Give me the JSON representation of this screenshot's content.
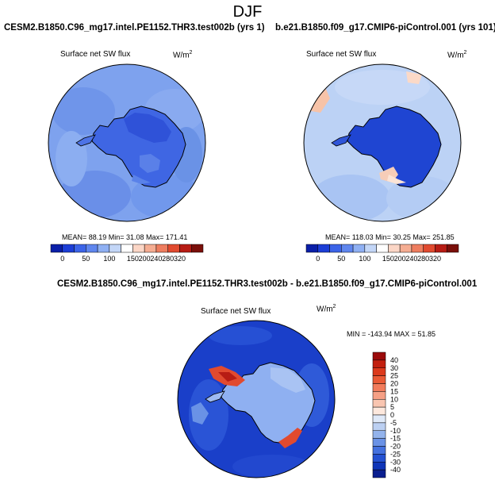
{
  "figure": {
    "title": "DJF"
  },
  "panels": [
    {
      "case": "CESM2.B1850.C96_mg17.intel.PE1152.THR3.test002b (yrs 1)",
      "variable": "Surface net SW flux",
      "units": "W/m",
      "units_exp": "2",
      "stats": "MEAN=  88.19  Min=  31.08  Max= 171.41",
      "colorbar": {
        "labels": [
          "0",
          "50",
          "100",
          "150",
          "200",
          "240",
          "280",
          "320"
        ],
        "colors": [
          "#0a1fa8",
          "#1c3ed6",
          "#3c64e8",
          "#5f86ee",
          "#8fb0f3",
          "#c3d6f7",
          "#ffffff",
          "#fbd6c6",
          "#f5ad92",
          "#ee7d5f",
          "#e14a2f",
          "#b71c14",
          "#7a0f0a"
        ]
      }
    },
    {
      "case": "b.e21.B1850.f09_g17.CMIP6-piControl.001 (yrs 101)",
      "variable": "Surface net SW flux",
      "units": "W/m",
      "units_exp": "2",
      "stats": "MEAN= 118.03  Min=  30.25  Max= 251.85",
      "colorbar": {
        "labels": [
          "0",
          "50",
          "100",
          "150",
          "200",
          "240",
          "280",
          "320"
        ],
        "colors": [
          "#0a1fa8",
          "#1c3ed6",
          "#3c64e8",
          "#5f86ee",
          "#8fb0f3",
          "#c3d6f7",
          "#ffffff",
          "#fbd6c6",
          "#f5ad92",
          "#ee7d5f",
          "#e14a2f",
          "#b71c14",
          "#7a0f0a"
        ]
      }
    }
  ],
  "diff": {
    "title": "CESM2.B1850.C96_mg17.intel.PE1152.THR3.test002b - b.e21.B1850.f09_g17.CMIP6-piControl.001",
    "variable": "Surface net SW flux",
    "units": "W/m",
    "units_exp": "2",
    "stats": "MIN = -143.94 MAX =  51.85",
    "colorbar": {
      "labels": [
        "40",
        "30",
        "25",
        "20",
        "15",
        "10",
        "5",
        "0",
        "-5",
        "-10",
        "-15",
        "-20",
        "-25",
        "-30",
        "-40"
      ],
      "colors": [
        "#9b0b0b",
        "#c3200f",
        "#dc3a1c",
        "#ea5a36",
        "#f27c5c",
        "#f6a085",
        "#f9c5b0",
        "#fde8dd",
        "#dfe9f8",
        "#bcd0f2",
        "#93b3ec",
        "#6a92e6",
        "#4471df",
        "#2451d2",
        "#0f35b8",
        "#0a1f8f"
      ]
    }
  }
}
